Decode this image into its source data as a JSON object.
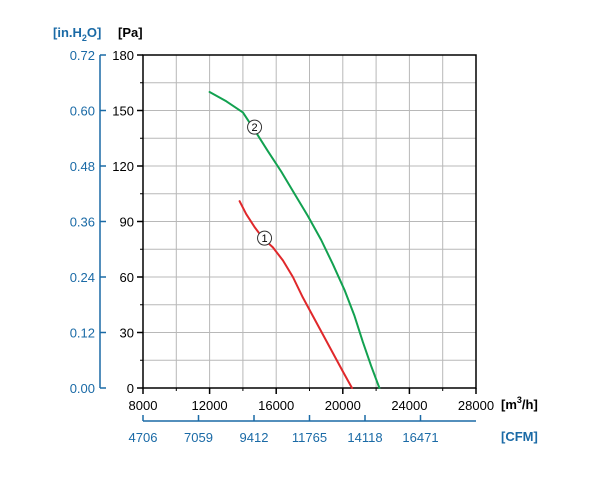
{
  "chart_data": {
    "type": "line",
    "axes": {
      "x_primary": {
        "unit_label": "[m³/h]",
        "unit_main": "[m",
        "unit_sup": "3",
        "unit_tail": "/h]",
        "ticks": [
          8000,
          12000,
          16000,
          20000,
          24000,
          28000
        ],
        "range": [
          8000,
          28000
        ]
      },
      "x_secondary": {
        "unit_label": "[CFM]",
        "ticks": [
          "4706",
          "7059",
          "9412",
          "11765",
          "14118",
          "16471"
        ]
      },
      "y_primary": {
        "unit_label": "[Pa]",
        "ticks": [
          0,
          30,
          60,
          90,
          120,
          150,
          180
        ],
        "range": [
          0,
          180
        ]
      },
      "y_secondary": {
        "unit_main": "[in.H",
        "unit_sub": "2",
        "unit_tail": "O]",
        "ticks": [
          "0.00",
          "0.12",
          "0.24",
          "0.36",
          "0.48",
          "0.60",
          "0.72"
        ]
      }
    },
    "grid": true,
    "series": [
      {
        "marker": "1",
        "color": "#e0282b",
        "points": [
          [
            13800,
            101
          ],
          [
            14200,
            94
          ],
          [
            14700,
            87
          ],
          [
            15200,
            81
          ],
          [
            15800,
            76
          ],
          [
            16400,
            69
          ],
          [
            17000,
            60
          ],
          [
            17600,
            49
          ],
          [
            18200,
            39
          ],
          [
            18800,
            29
          ],
          [
            19400,
            19
          ],
          [
            20000,
            9
          ],
          [
            20550,
            0
          ]
        ]
      },
      {
        "marker": "2",
        "color": "#12a150",
        "points": [
          [
            12000,
            160
          ],
          [
            13000,
            155
          ],
          [
            14000,
            149
          ],
          [
            14800,
            138
          ],
          [
            15500,
            128
          ],
          [
            16300,
            117
          ],
          [
            17100,
            105
          ],
          [
            17900,
            93
          ],
          [
            18700,
            80
          ],
          [
            19400,
            67
          ],
          [
            20100,
            53
          ],
          [
            20700,
            39
          ],
          [
            21200,
            25
          ],
          [
            21700,
            12
          ],
          [
            22200,
            0
          ]
        ]
      }
    ],
    "markers": [
      {
        "label": "1",
        "x": 15300,
        "y": 81
      },
      {
        "label": "2",
        "x": 14700,
        "y": 141
      }
    ]
  }
}
